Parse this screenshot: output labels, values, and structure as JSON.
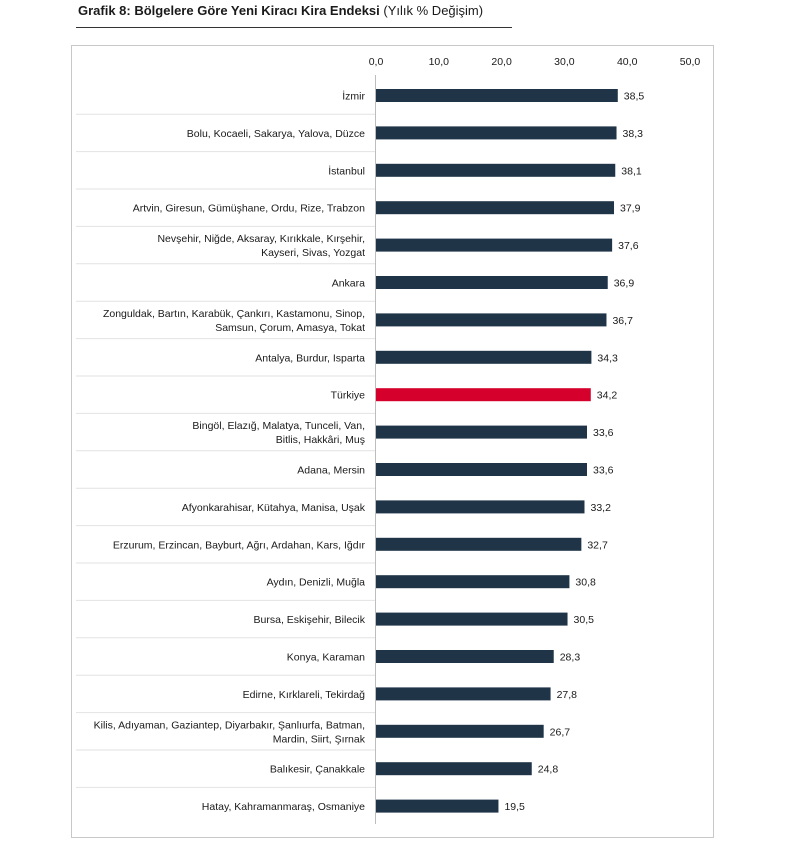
{
  "title": {
    "bold": "Grafik 8: Bölgelere Göre Yeni Kiracı Kira Endeksi",
    "normal": "(Yılık % Değişim)"
  },
  "chart_data": {
    "type": "bar",
    "orientation": "horizontal",
    "title": "Grafik 8: Bölgelere Göre Yeni Kiracı Kira Endeksi (Yılık % Değişim)",
    "xlim": [
      0,
      50
    ],
    "xticks": [
      "0,0",
      "10,0",
      "20,0",
      "30,0",
      "40,0",
      "50,0"
    ],
    "xtick_values": [
      0,
      10,
      20,
      30,
      40,
      50
    ],
    "colors": {
      "default": "#1f3447",
      "highlight": "#d5002c"
    },
    "bars": [
      {
        "label": [
          "İzmir"
        ],
        "value": 38.5,
        "value_label": "38,5",
        "highlight": false
      },
      {
        "label": [
          "Bolu, Kocaeli, Sakarya, Yalova, Düzce"
        ],
        "value": 38.3,
        "value_label": "38,3",
        "highlight": false
      },
      {
        "label": [
          "İstanbul"
        ],
        "value": 38.1,
        "value_label": "38,1",
        "highlight": false
      },
      {
        "label": [
          "Artvin, Giresun, Gümüşhane, Ordu, Rize, Trabzon"
        ],
        "value": 37.9,
        "value_label": "37,9",
        "highlight": false
      },
      {
        "label": [
          "Nevşehir, Niğde, Aksaray, Kırıkkale, Kırşehir,",
          "Kayseri, Sivas, Yozgat"
        ],
        "value": 37.6,
        "value_label": "37,6",
        "highlight": false
      },
      {
        "label": [
          "Ankara"
        ],
        "value": 36.9,
        "value_label": "36,9",
        "highlight": false
      },
      {
        "label": [
          "Zonguldak, Bartın, Karabük, Çankırı, Kastamonu, Sinop,",
          "Samsun, Çorum, Amasya, Tokat"
        ],
        "value": 36.7,
        "value_label": "36,7",
        "highlight": false
      },
      {
        "label": [
          "Antalya, Burdur, Isparta"
        ],
        "value": 34.3,
        "value_label": "34,3",
        "highlight": false
      },
      {
        "label": [
          "Türkiye"
        ],
        "value": 34.2,
        "value_label": "34,2",
        "highlight": true
      },
      {
        "label": [
          "Bingöl, Elazığ, Malatya, Tunceli, Van,",
          "Bitlis, Hakkâri, Muş"
        ],
        "value": 33.6,
        "value_label": "33,6",
        "highlight": false
      },
      {
        "label": [
          "Adana, Mersin"
        ],
        "value": 33.6,
        "value_label": "33,6",
        "highlight": false
      },
      {
        "label": [
          "Afyonkarahisar, Kütahya, Manisa, Uşak"
        ],
        "value": 33.2,
        "value_label": "33,2",
        "highlight": false
      },
      {
        "label": [
          "Erzurum, Erzincan, Bayburt, Ağrı, Ardahan, Kars, Iğdır"
        ],
        "value": 32.7,
        "value_label": "32,7",
        "highlight": false
      },
      {
        "label": [
          "Aydın, Denizli, Muğla"
        ],
        "value": 30.8,
        "value_label": "30,8",
        "highlight": false
      },
      {
        "label": [
          "Bursa, Eskişehir, Bilecik"
        ],
        "value": 30.5,
        "value_label": "30,5",
        "highlight": false
      },
      {
        "label": [
          "Konya, Karaman"
        ],
        "value": 28.3,
        "value_label": "28,3",
        "highlight": false
      },
      {
        "label": [
          "Edirne, Kırklareli, Tekirdağ"
        ],
        "value": 27.8,
        "value_label": "27,8",
        "highlight": false
      },
      {
        "label": [
          "Kilis, Adıyaman, Gaziantep, Diyarbakır, Şanlıurfa, Batman,",
          "Mardin, Siirt, Şırnak"
        ],
        "value": 26.7,
        "value_label": "26,7",
        "highlight": false
      },
      {
        "label": [
          "Balıkesir, Çanakkale"
        ],
        "value": 24.8,
        "value_label": "24,8",
        "highlight": false
      },
      {
        "label": [
          "Hatay, Kahramanmaraş, Osmaniye"
        ],
        "value": 19.5,
        "value_label": "19,5",
        "highlight": false
      }
    ]
  }
}
